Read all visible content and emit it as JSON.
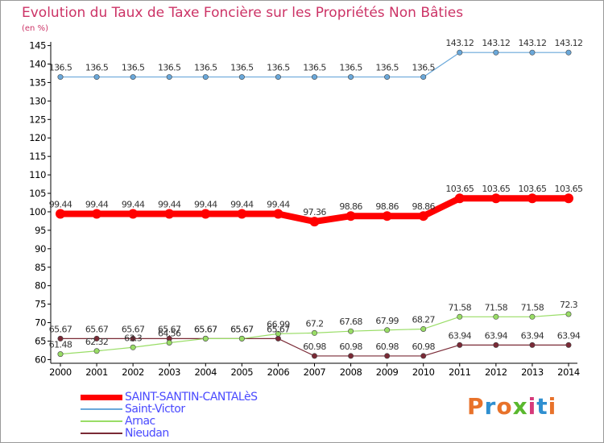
{
  "title": "Evolution du Taux de Taxe Foncière sur les Propriétés Non Bâties",
  "unit": "(en %)",
  "logo": {
    "text": "Proxiti",
    "colors": [
      "#e8722a",
      "#2f8fd0",
      "#e8722a",
      "#5ab82e",
      "#d63a7a",
      "#2f8fd0",
      "#e8722a"
    ]
  },
  "chart_data": {
    "type": "line",
    "title": "Evolution du Taux de Taxe Foncière sur les Propriétés Non Bâties",
    "ylabel": "(en %)",
    "xlabel": "",
    "ylim": [
      59,
      146
    ],
    "yticks": [
      60,
      65,
      70,
      75,
      80,
      85,
      90,
      95,
      100,
      105,
      110,
      115,
      120,
      125,
      130,
      135,
      140,
      145
    ],
    "grid": false,
    "legend": "bottom-left",
    "x": [
      "2000",
      "2001",
      "2002",
      "2003",
      "2004",
      "2005",
      "2006",
      "2007",
      "2008",
      "2009",
      "2010",
      "2011",
      "2012",
      "2013",
      "2014"
    ],
    "series": [
      {
        "name": "SAINT-SANTIN-CANTALèS",
        "color": "#ff0000",
        "values": [
          99.44,
          99.44,
          99.44,
          99.44,
          99.44,
          99.44,
          99.44,
          97.36,
          98.86,
          98.86,
          98.86,
          103.65,
          103.65,
          103.65,
          103.65
        ],
        "labels": [
          "99.44",
          "99.44",
          "99.44",
          "99.44",
          "99.44",
          "99.44",
          "99.44",
          "97.36",
          "98.86",
          "98.86",
          "98.86",
          "103.65",
          "103.65",
          "103.65",
          "103.65"
        ]
      },
      {
        "name": "Saint-Victor",
        "color": "#6aa8da",
        "values": [
          136.5,
          136.5,
          136.5,
          136.5,
          136.5,
          136.5,
          136.5,
          136.5,
          136.5,
          136.5,
          136.5,
          143.12,
          143.12,
          143.12,
          143.12
        ],
        "labels": [
          "136.5",
          "136.5",
          "136.5",
          "136.5",
          "136.5",
          "136.5",
          "136.5",
          "136.5",
          "136.5",
          "136.5",
          "136.5",
          "143.12",
          "143.12",
          "143.12",
          "143.12"
        ]
      },
      {
        "name": "Arnac",
        "color": "#99dd66",
        "values": [
          61.48,
          62.32,
          63.3,
          64.56,
          65.67,
          65.67,
          66.99,
          67.2,
          67.68,
          67.99,
          68.27,
          71.58,
          71.58,
          71.58,
          72.3
        ],
        "labels": [
          "61.48",
          "62.32",
          "63.3",
          "64.56",
          "65.67",
          "65.67",
          "66.99",
          "67.2",
          "67.68",
          "67.99",
          "68.27",
          "71.58",
          "71.58",
          "71.58",
          "72.3"
        ]
      },
      {
        "name": "Nieudan",
        "color": "#7a2a36",
        "values": [
          65.67,
          65.67,
          65.67,
          65.67,
          65.67,
          65.67,
          65.67,
          60.98,
          60.98,
          60.98,
          60.98,
          63.94,
          63.94,
          63.94,
          63.94
        ],
        "labels": [
          "65.67",
          "65.67",
          "65.67",
          "65.67",
          "65.67",
          "65.67",
          "65.67",
          "60.98",
          "60.98",
          "60.98",
          "60.98",
          "63.94",
          "63.94",
          "63.94",
          "63.94"
        ]
      }
    ]
  }
}
